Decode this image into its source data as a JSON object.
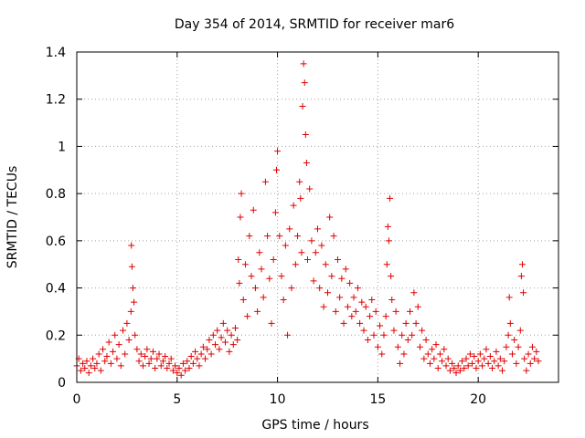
{
  "chart_data": {
    "type": "scatter",
    "title": "Day 354 of 2014, SRMTID for receiver mar6",
    "xlabel": "GPS time / hours",
    "ylabel": "SRMTID / TECUs",
    "xlim": [
      0,
      24
    ],
    "ylim": [
      0,
      1.4
    ],
    "xticks": [
      0,
      5,
      10,
      15,
      20
    ],
    "xtick_labels": [
      "0",
      "5",
      "10",
      "15",
      "20"
    ],
    "yticks": [
      0,
      0.2,
      0.4,
      0.6,
      0.8,
      1.0,
      1.2,
      1.4
    ],
    "ytick_labels": [
      "0",
      "0.2",
      "0.4",
      "0.6",
      "0.8",
      "1",
      "1.2",
      "1.4"
    ],
    "grid": true,
    "marker": "plus",
    "color": "#e00000",
    "series": [
      {
        "name": "SRMTID",
        "points": [
          [
            0.0,
            0.07
          ],
          [
            0.1,
            0.1
          ],
          [
            0.2,
            0.05
          ],
          [
            0.3,
            0.08
          ],
          [
            0.4,
            0.06
          ],
          [
            0.5,
            0.09
          ],
          [
            0.6,
            0.04
          ],
          [
            0.7,
            0.07
          ],
          [
            0.8,
            0.1
          ],
          [
            0.9,
            0.06
          ],
          [
            1.0,
            0.08
          ],
          [
            1.1,
            0.12
          ],
          [
            1.2,
            0.05
          ],
          [
            1.3,
            0.14
          ],
          [
            1.4,
            0.09
          ],
          [
            1.5,
            0.11
          ],
          [
            1.6,
            0.17
          ],
          [
            1.7,
            0.08
          ],
          [
            1.8,
            0.13
          ],
          [
            1.9,
            0.2
          ],
          [
            2.0,
            0.1
          ],
          [
            2.1,
            0.16
          ],
          [
            2.2,
            0.07
          ],
          [
            2.3,
            0.22
          ],
          [
            2.4,
            0.12
          ],
          [
            2.5,
            0.25
          ],
          [
            2.6,
            0.18
          ],
          [
            2.7,
            0.3
          ],
          [
            2.72,
            0.58
          ],
          [
            2.75,
            0.49
          ],
          [
            2.8,
            0.4
          ],
          [
            2.85,
            0.34
          ],
          [
            2.9,
            0.2
          ],
          [
            3.0,
            0.14
          ],
          [
            3.1,
            0.09
          ],
          [
            3.2,
            0.12
          ],
          [
            3.3,
            0.07
          ],
          [
            3.4,
            0.11
          ],
          [
            3.5,
            0.14
          ],
          [
            3.6,
            0.08
          ],
          [
            3.7,
            0.1
          ],
          [
            3.8,
            0.13
          ],
          [
            3.9,
            0.06
          ],
          [
            4.0,
            0.1
          ],
          [
            4.1,
            0.12
          ],
          [
            4.2,
            0.07
          ],
          [
            4.3,
            0.09
          ],
          [
            4.4,
            0.11
          ],
          [
            4.5,
            0.06
          ],
          [
            4.6,
            0.08
          ],
          [
            4.7,
            0.1
          ],
          [
            4.8,
            0.05
          ],
          [
            4.9,
            0.07
          ],
          [
            5.0,
            0.04
          ],
          [
            5.1,
            0.06
          ],
          [
            5.2,
            0.03
          ],
          [
            5.3,
            0.08
          ],
          [
            5.4,
            0.05
          ],
          [
            5.5,
            0.09
          ],
          [
            5.6,
            0.06
          ],
          [
            5.7,
            0.11
          ],
          [
            5.8,
            0.08
          ],
          [
            5.9,
            0.13
          ],
          [
            6.0,
            0.1
          ],
          [
            6.1,
            0.07
          ],
          [
            6.2,
            0.12
          ],
          [
            6.3,
            0.15
          ],
          [
            6.4,
            0.1
          ],
          [
            6.5,
            0.14
          ],
          [
            6.6,
            0.18
          ],
          [
            6.7,
            0.12
          ],
          [
            6.8,
            0.2
          ],
          [
            6.9,
            0.16
          ],
          [
            7.0,
            0.22
          ],
          [
            7.1,
            0.14
          ],
          [
            7.2,
            0.19
          ],
          [
            7.3,
            0.25
          ],
          [
            7.4,
            0.17
          ],
          [
            7.5,
            0.22
          ],
          [
            7.6,
            0.13
          ],
          [
            7.7,
            0.2
          ],
          [
            7.8,
            0.16
          ],
          [
            7.9,
            0.23
          ],
          [
            8.0,
            0.18
          ],
          [
            8.05,
            0.52
          ],
          [
            8.1,
            0.42
          ],
          [
            8.15,
            0.7
          ],
          [
            8.2,
            0.8
          ],
          [
            8.3,
            0.35
          ],
          [
            8.4,
            0.5
          ],
          [
            8.5,
            0.28
          ],
          [
            8.6,
            0.62
          ],
          [
            8.7,
            0.45
          ],
          [
            8.8,
            0.73
          ],
          [
            8.9,
            0.4
          ],
          [
            9.0,
            0.3
          ],
          [
            9.1,
            0.55
          ],
          [
            9.2,
            0.48
          ],
          [
            9.3,
            0.36
          ],
          [
            9.4,
            0.85
          ],
          [
            9.5,
            0.62
          ],
          [
            9.6,
            0.44
          ],
          [
            9.7,
            0.25
          ],
          [
            9.8,
            0.52
          ],
          [
            9.9,
            0.72
          ],
          [
            9.95,
            0.9
          ],
          [
            10.0,
            0.98
          ],
          [
            10.1,
            0.62
          ],
          [
            10.2,
            0.45
          ],
          [
            10.3,
            0.35
          ],
          [
            10.4,
            0.58
          ],
          [
            10.5,
            0.2
          ],
          [
            10.6,
            0.65
          ],
          [
            10.7,
            0.4
          ],
          [
            10.8,
            0.75
          ],
          [
            10.9,
            0.5
          ],
          [
            11.0,
            0.62
          ],
          [
            11.1,
            0.85
          ],
          [
            11.15,
            0.78
          ],
          [
            11.2,
            0.55
          ],
          [
            11.25,
            1.17
          ],
          [
            11.3,
            1.35
          ],
          [
            11.35,
            1.27
          ],
          [
            11.4,
            1.05
          ],
          [
            11.45,
            0.93
          ],
          [
            11.5,
            0.52
          ],
          [
            11.6,
            0.82
          ],
          [
            11.7,
            0.6
          ],
          [
            11.8,
            0.43
          ],
          [
            11.9,
            0.55
          ],
          [
            12.0,
            0.65
          ],
          [
            12.1,
            0.4
          ],
          [
            12.2,
            0.58
          ],
          [
            12.3,
            0.32
          ],
          [
            12.4,
            0.5
          ],
          [
            12.5,
            0.38
          ],
          [
            12.6,
            0.7
          ],
          [
            12.7,
            0.45
          ],
          [
            12.8,
            0.62
          ],
          [
            12.9,
            0.3
          ],
          [
            13.0,
            0.52
          ],
          [
            13.1,
            0.36
          ],
          [
            13.2,
            0.44
          ],
          [
            13.3,
            0.25
          ],
          [
            13.4,
            0.48
          ],
          [
            13.5,
            0.32
          ],
          [
            13.6,
            0.42
          ],
          [
            13.7,
            0.28
          ],
          [
            13.8,
            0.36
          ],
          [
            13.9,
            0.3
          ],
          [
            14.0,
            0.4
          ],
          [
            14.1,
            0.25
          ],
          [
            14.2,
            0.34
          ],
          [
            14.3,
            0.22
          ],
          [
            14.4,
            0.32
          ],
          [
            14.5,
            0.18
          ],
          [
            14.6,
            0.28
          ],
          [
            14.7,
            0.35
          ],
          [
            14.8,
            0.2
          ],
          [
            14.9,
            0.3
          ],
          [
            15.0,
            0.15
          ],
          [
            15.1,
            0.24
          ],
          [
            15.2,
            0.12
          ],
          [
            15.3,
            0.2
          ],
          [
            15.4,
            0.28
          ],
          [
            15.45,
            0.5
          ],
          [
            15.5,
            0.66
          ],
          [
            15.55,
            0.6
          ],
          [
            15.6,
            0.78
          ],
          [
            15.65,
            0.45
          ],
          [
            15.7,
            0.35
          ],
          [
            15.8,
            0.22
          ],
          [
            15.9,
            0.3
          ],
          [
            16.0,
            0.15
          ],
          [
            16.1,
            0.08
          ],
          [
            16.2,
            0.2
          ],
          [
            16.3,
            0.12
          ],
          [
            16.4,
            0.25
          ],
          [
            16.5,
            0.18
          ],
          [
            16.6,
            0.3
          ],
          [
            16.7,
            0.2
          ],
          [
            16.8,
            0.38
          ],
          [
            16.9,
            0.25
          ],
          [
            17.0,
            0.32
          ],
          [
            17.1,
            0.15
          ],
          [
            17.2,
            0.22
          ],
          [
            17.3,
            0.1
          ],
          [
            17.4,
            0.18
          ],
          [
            17.5,
            0.12
          ],
          [
            17.6,
            0.08
          ],
          [
            17.7,
            0.14
          ],
          [
            17.8,
            0.1
          ],
          [
            17.9,
            0.16
          ],
          [
            18.0,
            0.06
          ],
          [
            18.1,
            0.12
          ],
          [
            18.2,
            0.09
          ],
          [
            18.3,
            0.14
          ],
          [
            18.4,
            0.07
          ],
          [
            18.5,
            0.1
          ],
          [
            18.6,
            0.05
          ],
          [
            18.7,
            0.08
          ],
          [
            18.8,
            0.06
          ],
          [
            18.9,
            0.04
          ],
          [
            19.0,
            0.07
          ],
          [
            19.1,
            0.05
          ],
          [
            19.2,
            0.09
          ],
          [
            19.3,
            0.06
          ],
          [
            19.4,
            0.1
          ],
          [
            19.5,
            0.07
          ],
          [
            19.6,
            0.12
          ],
          [
            19.7,
            0.08
          ],
          [
            19.8,
            0.11
          ],
          [
            19.9,
            0.06
          ],
          [
            20.0,
            0.09
          ],
          [
            20.1,
            0.12
          ],
          [
            20.2,
            0.07
          ],
          [
            20.3,
            0.1
          ],
          [
            20.4,
            0.14
          ],
          [
            20.5,
            0.08
          ],
          [
            20.6,
            0.11
          ],
          [
            20.7,
            0.06
          ],
          [
            20.8,
            0.09
          ],
          [
            20.9,
            0.13
          ],
          [
            21.0,
            0.07
          ],
          [
            21.1,
            0.1
          ],
          [
            21.2,
            0.05
          ],
          [
            21.3,
            0.09
          ],
          [
            21.4,
            0.15
          ],
          [
            21.5,
            0.2
          ],
          [
            21.55,
            0.36
          ],
          [
            21.6,
            0.25
          ],
          [
            21.7,
            0.12
          ],
          [
            21.8,
            0.18
          ],
          [
            21.9,
            0.08
          ],
          [
            22.0,
            0.15
          ],
          [
            22.1,
            0.22
          ],
          [
            22.15,
            0.45
          ],
          [
            22.2,
            0.5
          ],
          [
            22.25,
            0.38
          ],
          [
            22.3,
            0.1
          ],
          [
            22.4,
            0.05
          ],
          [
            22.5,
            0.12
          ],
          [
            22.6,
            0.08
          ],
          [
            22.7,
            0.15
          ],
          [
            22.8,
            0.1
          ],
          [
            22.9,
            0.13
          ],
          [
            23.0,
            0.09
          ]
        ]
      }
    ]
  }
}
